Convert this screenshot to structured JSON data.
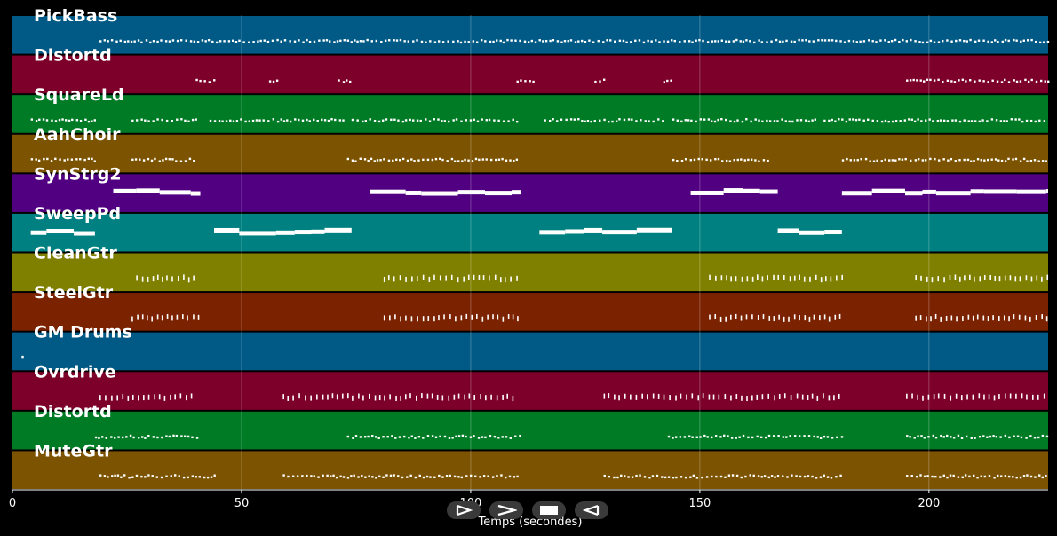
{
  "chart_data": {
    "type": "piano-roll",
    "xlabel": "Temps (secondes)",
    "xlim": [
      0,
      226
    ],
    "xticks": [
      0,
      50,
      100,
      150,
      200
    ],
    "grid": true,
    "tracks": [
      {
        "name": "PickBass",
        "color": "#015a86",
        "segments": [
          [
            19,
            226
          ]
        ],
        "style": "dots"
      },
      {
        "name": "Distortd",
        "color": "#7c0029",
        "segments": [
          [
            40,
            44
          ],
          [
            56,
            58
          ],
          [
            71,
            74
          ],
          [
            110,
            114
          ],
          [
            127,
            129
          ],
          [
            142,
            144
          ],
          [
            195,
            226
          ]
        ],
        "style": "dots"
      },
      {
        "name": "SquareLd",
        "color": "#007b25",
        "segments": [
          [
            4,
            18
          ],
          [
            26,
            40
          ],
          [
            43,
            72
          ],
          [
            74,
            110
          ],
          [
            116,
            142
          ],
          [
            144,
            175
          ],
          [
            177,
            226
          ]
        ],
        "style": "dots"
      },
      {
        "name": "AahChoir",
        "color": "#7c5300",
        "segments": [
          [
            4,
            18
          ],
          [
            26,
            40
          ],
          [
            73,
            110
          ],
          [
            144,
            165
          ],
          [
            181,
            226
          ]
        ],
        "style": "dots"
      },
      {
        "name": "SynStrg2",
        "color": "#500080",
        "segments": [
          [
            22,
            41
          ],
          [
            78,
            111
          ],
          [
            148,
            167
          ],
          [
            181,
            226
          ]
        ],
        "style": "bars"
      },
      {
        "name": "SweepPd",
        "color": "#008080",
        "segments": [
          [
            4,
            18
          ],
          [
            44,
            74
          ],
          [
            115,
            144
          ],
          [
            167,
            181
          ]
        ],
        "style": "bars"
      },
      {
        "name": "CleanGtr",
        "color": "#808000",
        "segments": [
          [
            27,
            40
          ],
          [
            81,
            110
          ],
          [
            152,
            181
          ],
          [
            197,
            226
          ]
        ],
        "style": "ticks"
      },
      {
        "name": "SteelGtr",
        "color": "#7b2200",
        "segments": [
          [
            26,
            41
          ],
          [
            81,
            111
          ],
          [
            152,
            181
          ],
          [
            197,
            226
          ]
        ],
        "style": "ticks"
      },
      {
        "name": "GM Drums",
        "color": "#015a86",
        "segments": [
          [
            2,
            2.5
          ]
        ],
        "style": "dots"
      },
      {
        "name": "Ovrdrive",
        "color": "#7c0029",
        "segments": [
          [
            19,
            40
          ],
          [
            59,
            110
          ],
          [
            129,
            181
          ],
          [
            195,
            226
          ]
        ],
        "style": "ticks"
      },
      {
        "name": "Distortd",
        "color": "#007b25",
        "segments": [
          [
            18,
            41
          ],
          [
            73,
            111
          ],
          [
            143,
            181
          ],
          [
            195,
            226
          ]
        ],
        "style": "dots"
      },
      {
        "name": "MuteGtr",
        "color": "#7c5300",
        "segments": [
          [
            19,
            44
          ],
          [
            59,
            110
          ],
          [
            129,
            181
          ],
          [
            195,
            226
          ]
        ],
        "style": "dots"
      }
    ]
  },
  "controls": {
    "play_icon": "play-icon",
    "fast_forward_icon": "fast-forward-icon",
    "stop_icon": "stop-icon",
    "rewind_icon": "rewind-icon"
  }
}
